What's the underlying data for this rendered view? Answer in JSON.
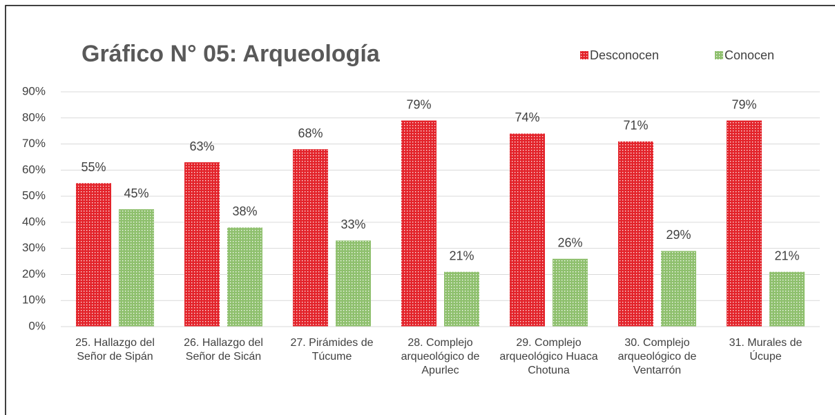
{
  "chart_data": {
    "type": "bar",
    "title": "Gráfico N° 05: Arqueología",
    "categories": [
      "25. Hallazgo del Señor de Sipán",
      "26. Hallazgo del Señor de Sicán",
      "27. Pirámides de Túcume",
      "28. Complejo arqueológico de Apurlec",
      "29. Complejo arqueológico Huaca Chotuna",
      "30. Complejo arqueológico de Ventarrón",
      "31. Murales de Úcupe"
    ],
    "series": [
      {
        "name": "Desconocen",
        "color": "#e3242b",
        "values": [
          55,
          63,
          68,
          79,
          74,
          71,
          79
        ],
        "value_labels": [
          "55%",
          "63%",
          "68%",
          "79%",
          "74%",
          "71%",
          "79%"
        ]
      },
      {
        "name": "Conocen",
        "color": "#8fc06e",
        "values": [
          45,
          38,
          33,
          21,
          26,
          29,
          21
        ],
        "value_labels": [
          "45%",
          "38%",
          "33%",
          "21%",
          "26%",
          "29%",
          "21%"
        ]
      }
    ],
    "ylim": [
      0,
      90
    ],
    "yticks": [
      {
        "value": 0,
        "label": "0%"
      },
      {
        "value": 10,
        "label": "10%"
      },
      {
        "value": 20,
        "label": "20%"
      },
      {
        "value": 30,
        "label": "30%"
      },
      {
        "value": 40,
        "label": "40%"
      },
      {
        "value": 50,
        "label": "50%"
      },
      {
        "value": 60,
        "label": "60%"
      },
      {
        "value": 70,
        "label": "70%"
      },
      {
        "value": 80,
        "label": "80%"
      },
      {
        "value": 90,
        "label": "90%"
      }
    ],
    "grid": true
  }
}
